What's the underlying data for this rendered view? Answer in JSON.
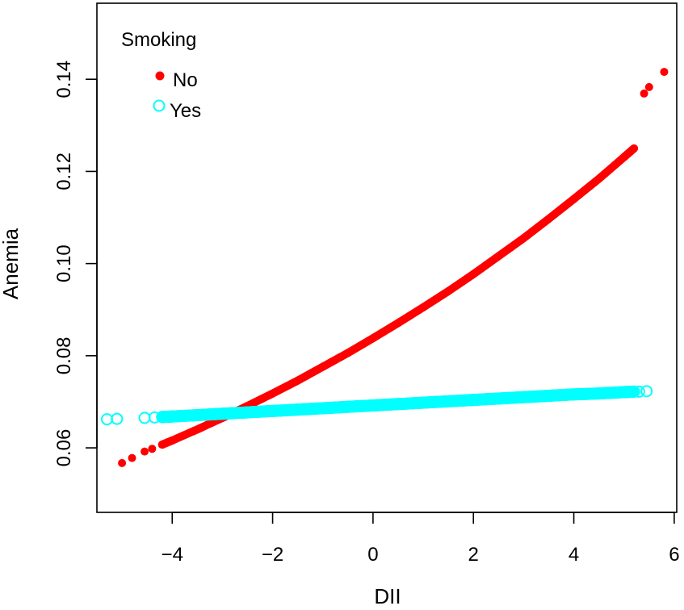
{
  "chart_data": {
    "type": "scatter",
    "xlabel": "DII",
    "ylabel": "Anemia",
    "xlim": [
      -5.5,
      6.05
    ],
    "ylim": [
      0.046,
      0.1565
    ],
    "x_ticks": [
      -4,
      -2,
      0,
      2,
      4,
      6
    ],
    "y_ticks": [
      0.06,
      0.08,
      0.1,
      0.12,
      0.14
    ],
    "x_tick_labels": [
      "−4",
      "−2",
      "0",
      "2",
      "4",
      "6"
    ],
    "y_tick_labels": [
      "0.06",
      "0.08",
      "0.10",
      "0.12",
      "0.14"
    ],
    "grid": false,
    "legend": {
      "title": "Smoking",
      "position": "top-left"
    },
    "series": [
      {
        "name": "No",
        "marker": "filled-circle",
        "color": "#ff0000",
        "x": [
          -5.0,
          -4.8,
          -4.55,
          -4.4,
          -4.2,
          -4.0,
          -3.5,
          -3.0,
          -2.5,
          -2.0,
          -1.5,
          -1.0,
          -0.5,
          0.0,
          0.5,
          1.0,
          1.5,
          2.0,
          2.5,
          3.0,
          3.5,
          4.0,
          4.5,
          5.0,
          5.2,
          5.4,
          5.5,
          5.8
        ],
        "y": [
          0.0567,
          0.0578,
          0.0592,
          0.0598,
          0.0607,
          0.0616,
          0.064,
          0.0665,
          0.0691,
          0.0718,
          0.0746,
          0.0776,
          0.0806,
          0.0838,
          0.0871,
          0.0905,
          0.094,
          0.0977,
          0.1016,
          0.1055,
          0.1097,
          0.114,
          0.1184,
          0.1231,
          0.125,
          0.1369,
          0.1383,
          0.1416
        ]
      },
      {
        "name": "Yes",
        "marker": "open-circle",
        "color": "#00ffff",
        "x": [
          -5.3,
          -5.1,
          -4.55,
          -4.35,
          -4.2,
          -4.0,
          -3.5,
          -3.0,
          -2.5,
          -2.0,
          -1.5,
          -1.0,
          -0.5,
          0.0,
          0.5,
          1.0,
          1.5,
          2.0,
          2.5,
          3.0,
          3.5,
          4.0,
          4.5,
          5.0,
          5.2,
          5.3,
          5.45
        ],
        "y": [
          0.0662,
          0.0663,
          0.0665,
          0.0666,
          0.0667,
          0.0668,
          0.0671,
          0.0674,
          0.0677,
          0.068,
          0.0683,
          0.0686,
          0.0689,
          0.0692,
          0.0695,
          0.0698,
          0.0701,
          0.0704,
          0.0707,
          0.071,
          0.0713,
          0.0716,
          0.0718,
          0.0721,
          0.0722,
          0.0722,
          0.0723
        ]
      }
    ]
  }
}
